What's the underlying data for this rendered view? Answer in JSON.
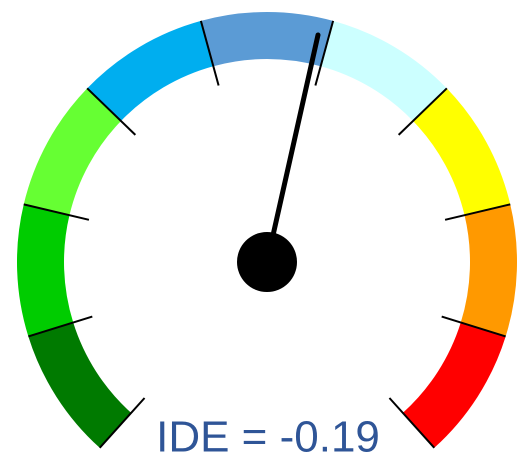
{
  "chart_data": {
    "type": "gauge",
    "label": "IDE = -0.19",
    "bands": [
      "#007a00",
      "#00cc00",
      "#66ff33",
      "#00aeef",
      "#5b9bd5",
      "#ccffff",
      "#ffff00",
      "#ff9900",
      "#ff0000"
    ]
  }
}
